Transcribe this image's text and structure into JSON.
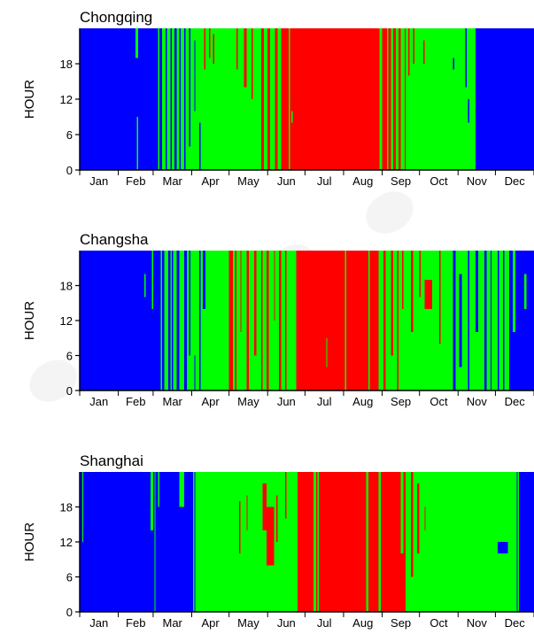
{
  "colors": {
    "cool": "#0000ff",
    "mild": "#00ff00",
    "hot": "#ff0000",
    "axis": "#000000",
    "background": "#ffffff"
  },
  "chart_data": [
    {
      "type": "heatmap",
      "title": "Chongqing",
      "xlabel": "",
      "ylabel": "HOUR",
      "xlim": [
        0,
        365
      ],
      "ylim": [
        0,
        24
      ],
      "x_ticks": [
        "Jan",
        "Feb",
        "Mar",
        "Apr",
        "May",
        "Jun",
        "Jul",
        "Aug",
        "Sep",
        "Oct",
        "Nov",
        "Dec"
      ],
      "y_ticks": [
        0,
        6,
        12,
        18
      ],
      "color_map": {
        "cool": "#0000ff",
        "mild": "#00ff00",
        "hot": "#ff0000"
      },
      "segments": [
        {
          "from": 0,
          "to": 63,
          "class": "cool"
        },
        {
          "from": 63,
          "to": 98,
          "class": "mild"
        },
        {
          "from": 98,
          "to": 141,
          "class": "mild"
        },
        {
          "from": 141,
          "to": 162,
          "class": "mild"
        },
        {
          "from": 162,
          "to": 250,
          "class": "hot"
        },
        {
          "from": 250,
          "to": 318,
          "class": "mild"
        },
        {
          "from": 318,
          "to": 365,
          "class": "cool"
        }
      ],
      "spots": [
        {
          "from": 45,
          "to": 47,
          "ylo": 19,
          "yhi": 24,
          "class": "mild"
        },
        {
          "from": 46,
          "to": 47,
          "ylo": 0,
          "yhi": 9,
          "class": "mild"
        },
        {
          "from": 64,
          "to": 66,
          "ylo": 0,
          "yhi": 24,
          "class": "cool"
        },
        {
          "from": 69,
          "to": 70,
          "ylo": 0,
          "yhi": 24,
          "class": "cool"
        },
        {
          "from": 73,
          "to": 74,
          "ylo": 0,
          "yhi": 24,
          "class": "cool"
        },
        {
          "from": 76,
          "to": 78,
          "ylo": 0,
          "yhi": 24,
          "class": "cool"
        },
        {
          "from": 80,
          "to": 81,
          "ylo": 0,
          "yhi": 24,
          "class": "cool"
        },
        {
          "from": 84,
          "to": 85,
          "ylo": 0,
          "yhi": 24,
          "class": "cool"
        },
        {
          "from": 88,
          "to": 89,
          "ylo": 4,
          "yhi": 24,
          "class": "cool"
        },
        {
          "from": 92,
          "to": 93,
          "ylo": 10,
          "yhi": 22,
          "class": "cool"
        },
        {
          "from": 96,
          "to": 97,
          "ylo": 0,
          "yhi": 8,
          "class": "cool"
        },
        {
          "from": 100,
          "to": 101,
          "ylo": 17,
          "yhi": 24,
          "class": "hot"
        },
        {
          "from": 104,
          "to": 105,
          "ylo": 19,
          "yhi": 24,
          "class": "hot"
        },
        {
          "from": 107,
          "to": 108,
          "ylo": 18,
          "yhi": 23,
          "class": "hot"
        },
        {
          "from": 126,
          "to": 127,
          "ylo": 17,
          "yhi": 24,
          "class": "hot"
        },
        {
          "from": 132,
          "to": 134,
          "ylo": 14,
          "yhi": 24,
          "class": "hot"
        },
        {
          "from": 138,
          "to": 139,
          "ylo": 12,
          "yhi": 24,
          "class": "hot"
        },
        {
          "from": 146,
          "to": 148,
          "ylo": 0,
          "yhi": 24,
          "class": "hot"
        },
        {
          "from": 151,
          "to": 153,
          "ylo": 0,
          "yhi": 24,
          "class": "hot"
        },
        {
          "from": 157,
          "to": 159,
          "ylo": 0,
          "yhi": 24,
          "class": "hot"
        },
        {
          "from": 168,
          "to": 169,
          "ylo": 0,
          "yhi": 24,
          "class": "mild"
        },
        {
          "from": 170,
          "to": 171,
          "ylo": 8,
          "yhi": 10,
          "class": "mild"
        },
        {
          "from": 241,
          "to": 243,
          "ylo": 0,
          "yhi": 24,
          "class": "mild"
        },
        {
          "from": 247,
          "to": 248,
          "ylo": 0,
          "yhi": 24,
          "class": "mild"
        },
        {
          "from": 252,
          "to": 254,
          "ylo": 0,
          "yhi": 24,
          "class": "hot"
        },
        {
          "from": 256,
          "to": 258,
          "ylo": 0,
          "yhi": 24,
          "class": "hot"
        },
        {
          "from": 261,
          "to": 262,
          "ylo": 0,
          "yhi": 24,
          "class": "hot"
        },
        {
          "from": 264,
          "to": 265,
          "ylo": 16,
          "yhi": 24,
          "class": "hot"
        },
        {
          "from": 268,
          "to": 269,
          "ylo": 18,
          "yhi": 24,
          "class": "hot"
        },
        {
          "from": 276,
          "to": 277,
          "ylo": 18,
          "yhi": 22,
          "class": "hot"
        },
        {
          "from": 300,
          "to": 301,
          "ylo": 17,
          "yhi": 19,
          "class": "cool"
        },
        {
          "from": 310,
          "to": 311,
          "ylo": 14,
          "yhi": 24,
          "class": "cool"
        },
        {
          "from": 312,
          "to": 313,
          "ylo": 8,
          "yhi": 12,
          "class": "cool"
        }
      ]
    },
    {
      "type": "heatmap",
      "title": "Changsha",
      "xlabel": "",
      "ylabel": "HOUR",
      "xlim": [
        0,
        365
      ],
      "ylim": [
        0,
        24
      ],
      "x_ticks": [
        "Jan",
        "Feb",
        "Mar",
        "Apr",
        "May",
        "Jun",
        "Jul",
        "Aug",
        "Sep",
        "Oct",
        "Nov",
        "Dec"
      ],
      "y_ticks": [
        0,
        6,
        12,
        18
      ],
      "color_map": {
        "cool": "#0000ff",
        "mild": "#00ff00",
        "hot": "#ff0000"
      },
      "segments": [
        {
          "from": 0,
          "to": 65,
          "class": "cool"
        },
        {
          "from": 65,
          "to": 128,
          "class": "mild"
        },
        {
          "from": 128,
          "to": 174,
          "class": "mild"
        },
        {
          "from": 174,
          "to": 240,
          "class": "hot"
        },
        {
          "from": 240,
          "to": 258,
          "class": "mild"
        },
        {
          "from": 258,
          "to": 345,
          "class": "mild"
        },
        {
          "from": 345,
          "to": 365,
          "class": "cool"
        }
      ],
      "spots": [
        {
          "from": 52,
          "to": 53,
          "ylo": 16,
          "yhi": 20,
          "class": "mild"
        },
        {
          "from": 58,
          "to": 59,
          "ylo": 14,
          "yhi": 24,
          "class": "mild"
        },
        {
          "from": 66,
          "to": 68,
          "ylo": 0,
          "yhi": 24,
          "class": "cool"
        },
        {
          "from": 71,
          "to": 73,
          "ylo": 0,
          "yhi": 24,
          "class": "cool"
        },
        {
          "from": 74,
          "to": 75,
          "ylo": 0,
          "yhi": 24,
          "class": "cool"
        },
        {
          "from": 78,
          "to": 80,
          "ylo": 0,
          "yhi": 24,
          "class": "cool"
        },
        {
          "from": 84,
          "to": 86,
          "ylo": 0,
          "yhi": 24,
          "class": "cool"
        },
        {
          "from": 88,
          "to": 89,
          "ylo": 6,
          "yhi": 24,
          "class": "cool"
        },
        {
          "from": 92,
          "to": 93,
          "ylo": 0,
          "yhi": 6,
          "class": "cool"
        },
        {
          "from": 96,
          "to": 97,
          "ylo": 0,
          "yhi": 24,
          "class": "cool"
        },
        {
          "from": 99,
          "to": 101,
          "ylo": 14,
          "yhi": 24,
          "class": "cool"
        },
        {
          "from": 120,
          "to": 123,
          "ylo": 0,
          "yhi": 24,
          "class": "hot"
        },
        {
          "from": 125,
          "to": 126,
          "ylo": 0,
          "yhi": 24,
          "class": "hot"
        },
        {
          "from": 129,
          "to": 130,
          "ylo": 10,
          "yhi": 24,
          "class": "hot"
        },
        {
          "from": 134,
          "to": 136,
          "ylo": 0,
          "yhi": 24,
          "class": "hot"
        },
        {
          "from": 140,
          "to": 142,
          "ylo": 6,
          "yhi": 24,
          "class": "hot"
        },
        {
          "from": 146,
          "to": 147,
          "ylo": 0,
          "yhi": 24,
          "class": "hot"
        },
        {
          "from": 150,
          "to": 152,
          "ylo": 0,
          "yhi": 24,
          "class": "hot"
        },
        {
          "from": 156,
          "to": 157,
          "ylo": 12,
          "yhi": 24,
          "class": "hot"
        },
        {
          "from": 160,
          "to": 162,
          "ylo": 0,
          "yhi": 24,
          "class": "hot"
        },
        {
          "from": 165,
          "to": 166,
          "ylo": 0,
          "yhi": 24,
          "class": "hot"
        },
        {
          "from": 198,
          "to": 199,
          "ylo": 4,
          "yhi": 9,
          "class": "mild"
        },
        {
          "from": 213,
          "to": 214,
          "ylo": 0,
          "yhi": 24,
          "class": "mild"
        },
        {
          "from": 232,
          "to": 233,
          "ylo": 0,
          "yhi": 24,
          "class": "mild"
        },
        {
          "from": 244,
          "to": 246,
          "ylo": 0,
          "yhi": 24,
          "class": "hot"
        },
        {
          "from": 250,
          "to": 252,
          "ylo": 6,
          "yhi": 24,
          "class": "hot"
        },
        {
          "from": 255,
          "to": 256,
          "ylo": 0,
          "yhi": 24,
          "class": "hot"
        },
        {
          "from": 259,
          "to": 260,
          "ylo": 14,
          "yhi": 24,
          "class": "hot"
        },
        {
          "from": 266,
          "to": 268,
          "ylo": 10,
          "yhi": 24,
          "class": "hot"
        },
        {
          "from": 273,
          "to": 274,
          "ylo": 16,
          "yhi": 24,
          "class": "hot"
        },
        {
          "from": 277,
          "to": 283,
          "ylo": 14,
          "yhi": 19,
          "class": "hot"
        },
        {
          "from": 289,
          "to": 290,
          "ylo": 8,
          "yhi": 24,
          "class": "hot"
        },
        {
          "from": 300,
          "to": 302,
          "ylo": 0,
          "yhi": 24,
          "class": "cool"
        },
        {
          "from": 305,
          "to": 307,
          "ylo": 4,
          "yhi": 20,
          "class": "cool"
        },
        {
          "from": 312,
          "to": 313,
          "ylo": 0,
          "yhi": 24,
          "class": "cool"
        },
        {
          "from": 318,
          "to": 320,
          "ylo": 10,
          "yhi": 24,
          "class": "cool"
        },
        {
          "from": 325,
          "to": 327,
          "ylo": 0,
          "yhi": 24,
          "class": "cool"
        },
        {
          "from": 330,
          "to": 331,
          "ylo": 0,
          "yhi": 24,
          "class": "cool"
        },
        {
          "from": 336,
          "to": 337,
          "ylo": 0,
          "yhi": 24,
          "class": "cool"
        },
        {
          "from": 340,
          "to": 341,
          "ylo": 0,
          "yhi": 24,
          "class": "cool"
        },
        {
          "from": 348,
          "to": 350,
          "ylo": 10,
          "yhi": 24,
          "class": "mild"
        },
        {
          "from": 357,
          "to": 359,
          "ylo": 14,
          "yhi": 20,
          "class": "mild"
        }
      ]
    },
    {
      "type": "heatmap",
      "title": "Shanghai",
      "xlabel": "",
      "ylabel": "HOUR",
      "xlim": [
        0,
        365
      ],
      "ylim": [
        0,
        24
      ],
      "x_ticks": [
        "Jan",
        "Feb",
        "Mar",
        "Apr",
        "May",
        "Jun",
        "Jul",
        "Aug",
        "Sep",
        "Oct",
        "Nov",
        "Dec"
      ],
      "y_ticks": [
        0,
        6,
        12,
        18
      ],
      "color_map": {
        "cool": "#0000ff",
        "mild": "#00ff00",
        "hot": "#ff0000"
      },
      "segments": [
        {
          "from": 0,
          "to": 91,
          "class": "cool"
        },
        {
          "from": 91,
          "to": 175,
          "class": "mild"
        },
        {
          "from": 175,
          "to": 220,
          "class": "hot"
        },
        {
          "from": 220,
          "to": 262,
          "class": "hot"
        },
        {
          "from": 262,
          "to": 351,
          "class": "mild"
        },
        {
          "from": 351,
          "to": 365,
          "class": "cool"
        }
      ],
      "spots": [
        {
          "from": 2,
          "to": 3,
          "ylo": 12,
          "yhi": 24,
          "class": "mild"
        },
        {
          "from": 57,
          "to": 59,
          "ylo": 14,
          "yhi": 24,
          "class": "mild"
        },
        {
          "from": 60,
          "to": 61,
          "ylo": 0,
          "yhi": 24,
          "class": "mild"
        },
        {
          "from": 63,
          "to": 64,
          "ylo": 18,
          "yhi": 24,
          "class": "mild"
        },
        {
          "from": 80,
          "to": 84,
          "ylo": 18,
          "yhi": 24,
          "class": "mild"
        },
        {
          "from": 92,
          "to": 93,
          "ylo": 0,
          "yhi": 24,
          "class": "cool"
        },
        {
          "from": 128,
          "to": 129,
          "ylo": 10,
          "yhi": 19,
          "class": "hot"
        },
        {
          "from": 134,
          "to": 135,
          "ylo": 14,
          "yhi": 20,
          "class": "hot"
        },
        {
          "from": 147,
          "to": 150,
          "ylo": 14,
          "yhi": 22,
          "class": "hot"
        },
        {
          "from": 150,
          "to": 156,
          "ylo": 8,
          "yhi": 18,
          "class": "hot"
        },
        {
          "from": 158,
          "to": 159,
          "ylo": 12,
          "yhi": 20,
          "class": "hot"
        },
        {
          "from": 165,
          "to": 166,
          "ylo": 16,
          "yhi": 24,
          "class": "hot"
        },
        {
          "from": 188,
          "to": 190,
          "ylo": 0,
          "yhi": 24,
          "class": "mild"
        },
        {
          "from": 191,
          "to": 192,
          "ylo": 0,
          "yhi": 24,
          "class": "mild"
        },
        {
          "from": 230,
          "to": 232,
          "ylo": 0,
          "yhi": 24,
          "class": "mild"
        },
        {
          "from": 240,
          "to": 242,
          "ylo": 0,
          "yhi": 24,
          "class": "mild"
        },
        {
          "from": 258,
          "to": 260,
          "ylo": 10,
          "yhi": 24,
          "class": "mild"
        },
        {
          "from": 266,
          "to": 268,
          "ylo": 6,
          "yhi": 24,
          "class": "hot"
        },
        {
          "from": 271,
          "to": 273,
          "ylo": 10,
          "yhi": 22,
          "class": "hot"
        },
        {
          "from": 277,
          "to": 278,
          "ylo": 14,
          "yhi": 18,
          "class": "hot"
        },
        {
          "from": 336,
          "to": 344,
          "ylo": 10,
          "yhi": 12,
          "class": "cool"
        },
        {
          "from": 352,
          "to": 353,
          "ylo": 0,
          "yhi": 24,
          "class": "mild"
        }
      ]
    }
  ]
}
